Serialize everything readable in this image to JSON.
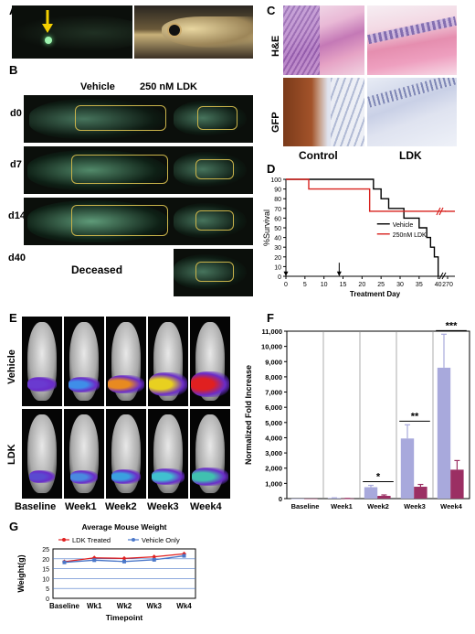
{
  "panels": {
    "A": "A",
    "B": "B",
    "C": "C",
    "D": "D",
    "E": "E",
    "F": "F",
    "G": "G"
  },
  "panel_b": {
    "vehicle_label": "Vehicle",
    "ldk_label": "250 nM LDK",
    "days": [
      "d0",
      "d7",
      "d14",
      "d40"
    ],
    "deceased_label": "Deceased"
  },
  "panel_c": {
    "row_labels": [
      "H&E",
      "GFP"
    ],
    "col_labels": [
      "Control",
      "LDK"
    ]
  },
  "panel_e": {
    "row_labels": [
      "Vehicle",
      "LDK"
    ],
    "timepoints": [
      "Baseline",
      "Week1",
      "Week2",
      "Week3",
      "Week4"
    ]
  },
  "chart_data": [
    {
      "id": "D",
      "type": "line",
      "ylabel": "%Survival",
      "xlabel": "Treatment Day",
      "x_ticks": [
        0,
        5,
        10,
        15,
        20,
        25,
        30,
        35,
        40,
        270
      ],
      "y_ticks": [
        0,
        10,
        20,
        30,
        40,
        50,
        60,
        70,
        80,
        90,
        100
      ],
      "ylim": [
        0,
        100
      ],
      "legend_position": "center-right",
      "arrows_at_day": [
        0,
        14
      ],
      "series": [
        {
          "name": "Vehicle",
          "color": "#000000",
          "x": [
            0,
            22,
            23,
            25,
            27,
            29,
            31,
            33,
            35,
            37,
            38,
            39,
            40
          ],
          "y": [
            100,
            100,
            90,
            80,
            70,
            70,
            60,
            60,
            50,
            40,
            30,
            20,
            0
          ]
        },
        {
          "name": "250nM LDK",
          "color": "#d8231f",
          "x": [
            0,
            6,
            22,
            42
          ],
          "y": [
            100,
            90,
            67,
            67
          ]
        }
      ]
    },
    {
      "id": "F",
      "type": "bar",
      "ylabel": "Normalized Fold Increase",
      "categories": [
        "Baseline",
        "Week1",
        "Week2",
        "Week3",
        "Week4"
      ],
      "y_ticks": [
        "0",
        "1,000",
        "2,000",
        "3,000",
        "4,000",
        "5,000",
        "6,000",
        "7,000",
        "8,000",
        "9,000",
        "10,000",
        "11,000"
      ],
      "ylim": [
        0,
        11000
      ],
      "series": [
        {
          "color": "#a8a9dc",
          "values": [
            1,
            40,
            750,
            3950,
            8600
          ],
          "errors": [
            0,
            10,
            120,
            900,
            2200
          ]
        },
        {
          "color": "#9b2f63",
          "values": [
            1,
            10,
            180,
            780,
            1900
          ],
          "errors": [
            0,
            5,
            60,
            150,
            600
          ]
        }
      ],
      "significance": [
        {
          "category": "Week2",
          "label": "*"
        },
        {
          "category": "Week3",
          "label": "**"
        },
        {
          "category": "Week4",
          "label": "***"
        }
      ]
    },
    {
      "id": "G",
      "type": "line",
      "title": "Average Mouse Weight",
      "ylabel": "Weight(g)",
      "xlabel": "Timepoint",
      "categories": [
        "Baseline",
        "Wk1",
        "Wk2",
        "Wk3",
        "Wk4"
      ],
      "y_ticks": [
        0,
        5,
        10,
        15,
        20,
        25
      ],
      "ylim": [
        0,
        25
      ],
      "legend_position": "top",
      "series": [
        {
          "name": "LDK Treated",
          "color": "#e02020",
          "values": [
            18.5,
            20.5,
            20.2,
            21.0,
            22.5
          ]
        },
        {
          "name": "Vehicle Only",
          "color": "#4a77c9",
          "values": [
            18.2,
            19.3,
            18.6,
            19.5,
            21.5
          ]
        }
      ]
    }
  ]
}
